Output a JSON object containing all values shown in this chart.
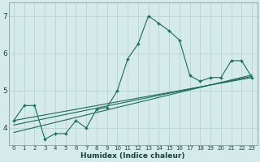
{
  "title": "",
  "xlabel": "Humidex (Indice chaleur)",
  "ylabel": "",
  "background_color": "#d5eaea",
  "grid_color": "#b8d4d4",
  "line_color": "#1a6b5a",
  "x_ticks": [
    0,
    1,
    2,
    3,
    4,
    5,
    6,
    7,
    8,
    9,
    10,
    11,
    12,
    13,
    14,
    15,
    16,
    17,
    18,
    19,
    20,
    21,
    22,
    23
  ],
  "y_ticks": [
    4,
    5,
    6,
    7
  ],
  "ylim": [
    3.55,
    7.35
  ],
  "xlim": [
    -0.5,
    23.5
  ],
  "line1_x": [
    0,
    1,
    2,
    3,
    4,
    5,
    6,
    7,
    8,
    9,
    10,
    11,
    12,
    13,
    14,
    15,
    16,
    17,
    18,
    19,
    20,
    21,
    22,
    23
  ],
  "line1_y": [
    4.2,
    4.6,
    4.6,
    3.7,
    3.85,
    3.85,
    4.2,
    4.0,
    4.5,
    4.55,
    5.0,
    5.85,
    6.25,
    7.0,
    6.8,
    6.6,
    6.35,
    5.4,
    5.25,
    5.35,
    5.35,
    5.8,
    5.8,
    5.35
  ],
  "line2_x": [
    0,
    23
  ],
  "line2_y": [
    4.2,
    5.35
  ],
  "line3_x": [
    0,
    23
  ],
  "line3_y": [
    4.08,
    5.38
  ],
  "line4_x": [
    0,
    23
  ],
  "line4_y": [
    3.88,
    5.42
  ]
}
